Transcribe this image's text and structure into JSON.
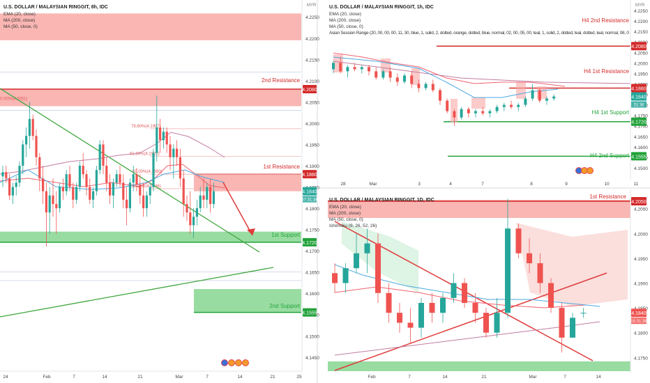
{
  "colors": {
    "bull": "#26a69a",
    "bear": "#ef5350",
    "resistance_zone": "#f8a9a6",
    "support_zone": "#7ed389",
    "resistance_line": "#d42a2a",
    "support_line": "#22a23a",
    "trendline_green": "#3ea63c",
    "trendline_red": "#e03a3a",
    "ema": "#f06070",
    "ma200": "#c27ba0",
    "ma50": "#4aa8e0"
  },
  "panels": [
    {
      "id": "8h",
      "title": "U.S. DOLLAR / MALAYSIAN RINGGIT, 8h, IDC",
      "legend": [
        "EMA (20, close)",
        "MA (200, close)",
        "MA (50, close, 0)"
      ],
      "currency": "MYR",
      "price_ticks": [
        "4.2250",
        "4.2200",
        "4.2150",
        "4.2100",
        "4.2050",
        "4.2000",
        "4.1950",
        "4.1900",
        "4.1850",
        "4.1800",
        "4.1750",
        "4.1700",
        "4.1650",
        "4.1600",
        "4.1550",
        "4.1500",
        "4.1450"
      ],
      "time_ticks": [
        "24",
        "Feb",
        "7",
        "14",
        "21",
        "Mar",
        "7",
        "14",
        "21",
        "25"
      ],
      "labels": [
        {
          "text": "2nd Resistance",
          "tag": "4.2080",
          "kind": "res"
        },
        {
          "text": "1st Resistance",
          "tag": "4.1880",
          "kind": "res"
        },
        {
          "text": "1st Support",
          "tag": "4.1720",
          "kind": "sup"
        },
        {
          "text": "2nd Support",
          "tag": "4.1555",
          "kind": "sup"
        }
      ],
      "fib_labels": [
        "0.00%(4.2051)",
        "78.60%(4.1987)",
        "61.80%(4.1922)",
        "50.00%(4.1880)",
        "38.20%(4.1846)"
      ],
      "last_price": "4.1840",
      "countdown": "07:31:38"
    },
    {
      "id": "1h",
      "title": "U.S. DOLLAR / MALAYSIAN RINGGIT, 1h, IDC",
      "legend": [
        "EMA (20, close)",
        "MA (200, close)",
        "MA (50, close, 0)",
        "Asian Session Range (20, 00, 00, 00, 11, 30, blue, 1, solid, 2, dotted, orange, dotted, blue, normal, 02, 00, 05, 00, teal, 1, solid, 2, dotted, teal, dotted, teal, normal, 08, 0"
      ],
      "currency": "MYR",
      "price_ticks": [
        "4.2250",
        "4.2200",
        "4.2150",
        "4.2100",
        "4.2050",
        "4.2000",
        "4.1950",
        "4.1900",
        "4.1850",
        "4.1800",
        "4.1750",
        "4.1700",
        "4.1650",
        "4.1600",
        "4.1550",
        "4.1500"
      ],
      "time_ticks": [
        "28",
        "Mar",
        "3",
        "4",
        "7",
        "8",
        "9",
        "10",
        "11"
      ],
      "labels": [
        {
          "text": "H4 2nd Resistance",
          "tag": "4.2080",
          "kind": "res"
        },
        {
          "text": "H4 1st Resistance",
          "tag": "4.1880",
          "kind": "res"
        },
        {
          "text": "H4 1st Support",
          "tag": "4.1720",
          "kind": "sup"
        },
        {
          "text": "H4 2nd Support",
          "tag": "4.1555",
          "kind": "sup"
        }
      ],
      "last_price": "4.1840",
      "countdown": "31:38"
    },
    {
      "id": "1d",
      "title": "U.S. DOLLAR / MALAYSIAN RINGGIT, 1D, IDC",
      "legend": [
        "EMA (20, close)",
        "MA (200, close)",
        "MA (50, close, 0)",
        "Ichimoku (9, 26, 52, 26)"
      ],
      "currency": "MYR",
      "price_ticks": [
        "4.2050",
        "4.2000",
        "4.1950",
        "4.1900",
        "4.1850",
        "4.1800",
        "4.1750"
      ],
      "time_ticks": [
        "Feb",
        "7",
        "14",
        "21",
        "Mar",
        "7",
        "14"
      ],
      "labels": [
        {
          "text": "1st Resistance",
          "tag": "4.2050",
          "kind": "res"
        }
      ],
      "last_price": "4.1840",
      "countdown": "15:31:38"
    }
  ],
  "chart_data": [
    {
      "type": "candlestick",
      "title": "U.S. DOLLAR / MALAYSIAN RINGGIT, 8h, IDC",
      "ylim": [
        4.143,
        4.227
      ],
      "levels": {
        "second_resistance": 4.208,
        "first_resistance": 4.188,
        "first_support": 4.172,
        "second_support": 4.1555
      },
      "zones": [
        [
          4.2195,
          4.2258
        ],
        [
          4.204,
          4.208
        ],
        [
          4.184,
          4.188
        ],
        [
          4.172,
          4.1745
        ],
        [
          4.1555,
          4.161
        ]
      ],
      "fibonacci": [
        [
          0,
          4.2051
        ],
        [
          0.786,
          4.1987
        ],
        [
          0.618,
          4.1922
        ],
        [
          0.5,
          4.188
        ],
        [
          0.382,
          4.1846
        ]
      ],
      "candles": [
        [
          4.1875,
          4.19,
          4.185,
          4.1885
        ],
        [
          4.1885,
          4.19,
          4.186,
          4.187
        ],
        [
          4.187,
          4.188,
          4.182,
          4.183
        ],
        [
          4.183,
          4.186,
          4.181,
          4.185
        ],
        [
          4.185,
          4.1875,
          4.183,
          4.186
        ],
        [
          4.186,
          4.191,
          4.185,
          4.19
        ],
        [
          4.19,
          4.196,
          4.188,
          4.195
        ],
        [
          4.195,
          4.199,
          4.192,
          4.197
        ],
        [
          4.197,
          4.205,
          4.194,
          4.201
        ],
        [
          4.201,
          4.202,
          4.196,
          4.197
        ],
        [
          4.197,
          4.1985,
          4.19,
          4.192
        ],
        [
          4.192,
          4.193,
          4.184,
          4.187
        ],
        [
          4.187,
          4.19,
          4.181,
          4.184
        ],
        [
          4.184,
          4.186,
          4.171,
          4.179
        ],
        [
          4.179,
          4.185,
          4.174,
          4.183
        ],
        [
          4.183,
          4.187,
          4.178,
          4.181
        ],
        [
          4.181,
          4.184,
          4.174,
          4.18
        ],
        [
          4.18,
          4.186,
          4.179,
          4.185
        ],
        [
          4.185,
          4.187,
          4.182,
          4.184
        ],
        [
          4.184,
          4.189,
          4.183,
          4.188
        ],
        [
          4.188,
          4.19,
          4.184,
          4.185
        ],
        [
          4.185,
          4.186,
          4.18,
          4.182
        ],
        [
          4.182,
          4.186,
          4.181,
          4.185
        ],
        [
          4.185,
          4.191,
          4.184,
          4.19
        ],
        [
          4.19,
          4.193,
          4.187,
          4.188
        ],
        [
          4.188,
          4.189,
          4.183,
          4.185
        ],
        [
          4.185,
          4.187,
          4.181,
          4.182
        ],
        [
          4.182,
          4.185,
          4.18,
          4.184
        ],
        [
          4.184,
          4.19,
          4.183,
          4.189
        ],
        [
          4.189,
          4.196,
          4.188,
          4.195
        ],
        [
          4.195,
          4.196,
          4.188,
          4.19
        ],
        [
          4.19,
          4.192,
          4.184,
          4.186
        ],
        [
          4.186,
          4.188,
          4.181,
          4.183
        ],
        [
          4.183,
          4.187,
          4.18,
          4.186
        ],
        [
          4.186,
          4.189,
          4.185,
          4.188
        ],
        [
          4.188,
          4.19,
          4.185,
          4.186
        ],
        [
          4.186,
          4.188,
          4.18,
          4.182
        ],
        [
          4.182,
          4.185,
          4.176,
          4.18
        ],
        [
          4.18,
          4.187,
          4.179,
          4.186
        ],
        [
          4.186,
          4.19,
          4.184,
          4.188
        ],
        [
          4.188,
          4.1895,
          4.184,
          4.1855
        ],
        [
          4.1855,
          4.188,
          4.181,
          4.183
        ],
        [
          4.183,
          4.186,
          4.178,
          4.18
        ],
        [
          4.18,
          4.184,
          4.178,
          4.183
        ],
        [
          4.183,
          4.186,
          4.181,
          4.185
        ],
        [
          4.185,
          4.194,
          4.184,
          4.193
        ],
        [
          4.193,
          4.2065,
          4.191,
          4.199
        ],
        [
          4.199,
          4.201,
          4.193,
          4.196
        ],
        [
          4.196,
          4.199,
          4.194,
          4.198
        ],
        [
          4.198,
          4.199,
          4.193,
          4.195
        ],
        [
          4.195,
          4.197,
          4.189,
          4.192
        ],
        [
          4.192,
          4.195,
          4.187,
          4.194
        ],
        [
          4.194,
          4.196,
          4.19,
          4.192
        ],
        [
          4.192,
          4.194,
          4.185,
          4.187
        ],
        [
          4.187,
          4.189,
          4.178,
          4.181
        ],
        [
          4.181,
          4.183,
          4.177,
          4.179
        ],
        [
          4.179,
          4.184,
          4.174,
          4.176
        ],
        [
          4.176,
          4.18,
          4.173,
          4.178
        ],
        [
          4.178,
          4.182,
          4.176,
          4.18
        ],
        [
          4.18,
          4.185,
          4.179,
          4.183
        ],
        [
          4.183,
          4.187,
          4.18,
          4.182
        ],
        [
          4.182,
          4.186,
          4.18,
          4.185
        ],
        [
          4.185,
          4.187,
          4.179,
          4.181
        ],
        [
          4.181,
          4.186,
          4.18,
          4.184
        ]
      ]
    },
    {
      "type": "candlestick",
      "title": "U.S. DOLLAR / MALAYSIAN RINGGIT, 1h, IDC",
      "ylim": [
        4.148,
        4.226
      ],
      "levels": {
        "h4_second_resistance": 4.208,
        "h4_first_resistance": 4.188,
        "h4_first_support": 4.172,
        "h4_second_support": 4.1555
      },
      "candles": [
        [
          4.197,
          4.201,
          4.195,
          4.2
        ],
        [
          4.2,
          4.203,
          4.195,
          4.196
        ],
        [
          4.196,
          4.199,
          4.193,
          4.198
        ],
        [
          4.198,
          4.2,
          4.196,
          4.197
        ],
        [
          4.197,
          4.199,
          4.195,
          4.198
        ],
        [
          4.198,
          4.199,
          4.194,
          4.196
        ],
        [
          4.196,
          4.198,
          4.192,
          4.193
        ],
        [
          4.193,
          4.197,
          4.192,
          4.196
        ],
        [
          4.196,
          4.198,
          4.191,
          4.193
        ],
        [
          4.193,
          4.195,
          4.189,
          4.191
        ],
        [
          4.191,
          4.195,
          4.19,
          4.194
        ],
        [
          4.194,
          4.196,
          4.188,
          4.19
        ],
        [
          4.19,
          4.192,
          4.186,
          4.188
        ],
        [
          4.188,
          4.191,
          4.187,
          4.19
        ],
        [
          4.19,
          4.192,
          4.186,
          4.187
        ],
        [
          4.187,
          4.188,
          4.18,
          4.182
        ],
        [
          4.182,
          4.183,
          4.176,
          4.177
        ],
        [
          4.177,
          4.178,
          4.17,
          4.174
        ],
        [
          4.174,
          4.179,
          4.173,
          4.178
        ],
        [
          4.178,
          4.179,
          4.174,
          4.176
        ],
        [
          4.176,
          4.178,
          4.174,
          4.177
        ],
        [
          4.177,
          4.179,
          4.175,
          4.176
        ],
        [
          4.176,
          4.178,
          4.174,
          4.177
        ],
        [
          4.177,
          4.18,
          4.176,
          4.179
        ],
        [
          4.179,
          4.181,
          4.177,
          4.18
        ],
        [
          4.18,
          4.182,
          4.178,
          4.179
        ],
        [
          4.179,
          4.181,
          4.177,
          4.18
        ],
        [
          4.18,
          4.184,
          4.179,
          4.183
        ],
        [
          4.183,
          4.19,
          4.182,
          4.187
        ],
        [
          4.187,
          4.188,
          4.181,
          4.182
        ],
        [
          4.182,
          4.184,
          4.18,
          4.183
        ],
        [
          4.183,
          4.185,
          4.182,
          4.184
        ]
      ]
    },
    {
      "type": "candlestick",
      "title": "U.S. DOLLAR / MALAYSIAN RINGGIT, 1D, IDC",
      "ylim": [
        4.1735,
        4.2065
      ],
      "levels": {
        "first_resistance": 4.205
      },
      "candles": [
        [
          4.192,
          4.194,
          4.188,
          4.19
        ],
        [
          4.19,
          4.194,
          4.188,
          4.193
        ],
        [
          4.193,
          4.2,
          4.192,
          4.196
        ],
        [
          4.196,
          4.201,
          4.192,
          4.198
        ],
        [
          4.198,
          4.2,
          4.186,
          4.188
        ],
        [
          4.188,
          4.19,
          4.182,
          4.184
        ],
        [
          4.184,
          4.186,
          4.18,
          4.182
        ],
        [
          4.182,
          4.185,
          4.178,
          4.181
        ],
        [
          4.181,
          4.187,
          4.179,
          4.186
        ],
        [
          4.186,
          4.188,
          4.182,
          4.184
        ],
        [
          4.184,
          4.188,
          4.182,
          4.187
        ],
        [
          4.187,
          4.192,
          4.186,
          4.19
        ],
        [
          4.19,
          4.191,
          4.185,
          4.186
        ],
        [
          4.186,
          4.188,
          4.182,
          4.184
        ],
        [
          4.184,
          4.185,
          4.179,
          4.18
        ],
        [
          4.18,
          4.187,
          4.179,
          4.184
        ],
        [
          4.184,
          4.207,
          4.183,
          4.201
        ],
        [
          4.201,
          4.202,
          4.195,
          4.196
        ],
        [
          4.196,
          4.199,
          4.192,
          4.194
        ],
        [
          4.194,
          4.196,
          4.188,
          4.19
        ],
        [
          4.19,
          4.191,
          4.184,
          4.185
        ],
        [
          4.185,
          4.186,
          4.176,
          4.179
        ],
        [
          4.179,
          4.184,
          4.179,
          4.183
        ],
        [
          4.184,
          4.185,
          4.183,
          4.184
        ]
      ]
    }
  ]
}
